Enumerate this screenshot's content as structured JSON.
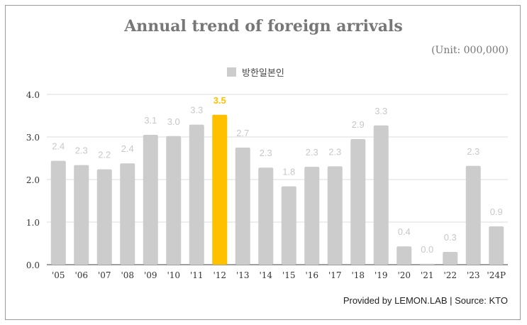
{
  "chart_data": {
    "type": "bar",
    "title": "Annual trend of foreign arrivals",
    "unit": "(Unit: 000,000)",
    "legend": [
      "방한일본인"
    ],
    "legend_position": "top",
    "categories": [
      "'05",
      "'06",
      "'07",
      "'08",
      "'09",
      "'10",
      "'11",
      "'12",
      "'13",
      "'14",
      "'15",
      "'16",
      "'17",
      "'18",
      "'19",
      "'20",
      "'21",
      "'22",
      "'23",
      "'24P"
    ],
    "values": [
      2.44,
      2.34,
      2.24,
      2.38,
      3.05,
      3.02,
      3.29,
      3.52,
      2.75,
      2.28,
      1.84,
      2.3,
      2.31,
      2.95,
      3.27,
      0.43,
      0.02,
      0.3,
      2.32,
      0.9
    ],
    "labels": [
      "2.4",
      "2.3",
      "2.2",
      "2.4",
      "3.1",
      "3.0",
      "3.3",
      "3.5",
      "2.7",
      "2.3",
      "1.8",
      "2.3",
      "2.3",
      "2.9",
      "3.3",
      "0.4",
      "0.0",
      "0.3",
      "2.3",
      "0.9"
    ],
    "highlight_index": 7,
    "yticks": [
      "0.0",
      "1.0",
      "2.0",
      "3.0",
      "4.0"
    ],
    "ylim": [
      0,
      4
    ],
    "grid": true,
    "colors": {
      "bar": "#cccccc",
      "highlight": "#ffc000",
      "label": "#c8c8c8"
    },
    "footer": "Provided by LEMON.LAB | Source: KTO"
  }
}
